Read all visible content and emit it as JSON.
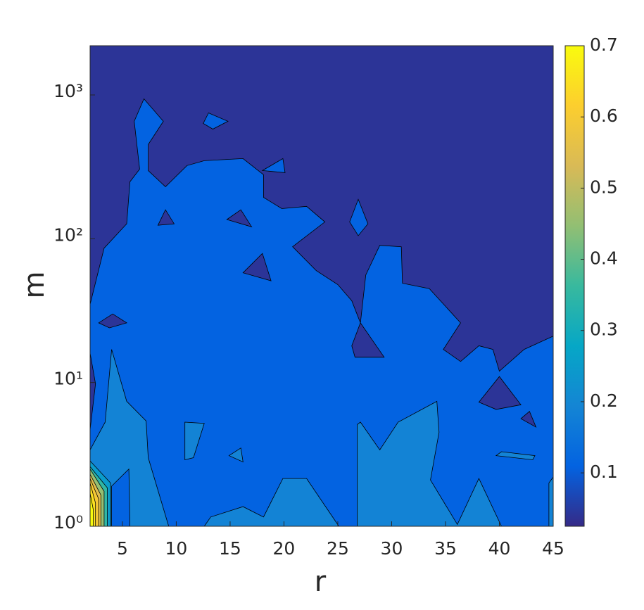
{
  "chart_data": {
    "type": "contour",
    "xlabel": "r",
    "ylabel": "m",
    "xlim": [
      2,
      45
    ],
    "xticks": [
      5,
      10,
      15,
      20,
      25,
      30,
      35,
      40,
      45
    ],
    "ylim": [
      1,
      2200
    ],
    "yscale": "log",
    "yticks": [
      {
        "value": 1,
        "label": "10⁰"
      },
      {
        "value": 10,
        "label": "10¹"
      },
      {
        "value": 100,
        "label": "10²"
      },
      {
        "value": 1000,
        "label": "10³"
      }
    ],
    "clim": [
      0.025,
      0.7
    ],
    "cticks": [
      0.1,
      0.2,
      0.3,
      0.4,
      0.5,
      0.6,
      0.7
    ],
    "colormap": [
      "#352a87",
      "#0363e1",
      "#1485d4",
      "#06a7c6",
      "#38b99e",
      "#92bf73",
      "#d9ba56",
      "#fcce2e",
      "#f9fb0e"
    ],
    "regions": [
      {
        "level": 0.04,
        "r": [
          2,
          45,
          45,
          2
        ],
        "m": [
          1,
          1,
          2200,
          2200
        ]
      },
      {
        "level": 0.11,
        "r": [
          2,
          3.3,
          5.4,
          5.7,
          6.6,
          6.1,
          7.0,
          8.8,
          7.4,
          7.4,
          9.0,
          11.0,
          12.6,
          16.2,
          18.1,
          18.1,
          19.8,
          22.1,
          23.8,
          20.8,
          23.0,
          25.0,
          26.3,
          27.1,
          27.6,
          28.9,
          30.9,
          31.0,
          33.5,
          36.4,
          34.8,
          36.4,
          38.1,
          39.4,
          40.0,
          42.3,
          45,
          45,
          2
        ],
        "m": [
          35,
          86,
          127,
          249,
          305,
          656,
          940,
          656,
          452,
          298,
          230,
          323,
          349,
          361,
          279,
          194,
          162,
          168,
          131,
          88,
          60,
          48,
          37,
          26,
          56,
          90,
          88,
          49,
          45,
          26,
          17,
          14,
          18,
          17,
          12,
          17,
          21,
          1,
          1
        ]
      },
      {
        "level": 0.04,
        "r": [
          26.3,
          27.1,
          29.3,
          26.6
        ],
        "m": [
          18,
          26,
          15,
          15
        ]
      },
      {
        "level": 0.04,
        "r": [
          2.8,
          4.1,
          5.4,
          3.8
        ],
        "m": [
          26,
          30,
          26,
          24
        ]
      },
      {
        "level": 0.04,
        "r": [
          38.1,
          40.0,
          42.0,
          39.7
        ],
        "m": [
          7.3,
          11,
          7.0,
          6.5
        ]
      },
      {
        "level": 0.04,
        "r": [
          16.2,
          18.0,
          18.8
        ],
        "m": [
          58,
          79,
          51
        ]
      },
      {
        "level": 0.04,
        "r": [
          14.7,
          16.0,
          17.0
        ],
        "m": [
          136,
          159,
          121
        ]
      },
      {
        "level": 0.04,
        "r": [
          8.3,
          9.0,
          9.8
        ],
        "m": [
          124,
          159,
          127
        ]
      },
      {
        "level": 0.04,
        "r": [
          42,
          42.8,
          43.4
        ],
        "m": [
          5.6,
          6.3,
          4.9
        ]
      },
      {
        "level": 0.04,
        "r": [
          2,
          2.5,
          2
        ],
        "m": [
          4.7,
          9.8,
          16
        ]
      },
      {
        "level": 0.11,
        "r": [
          12.5,
          13.0,
          14.8,
          13.4
        ],
        "m": [
          634,
          750,
          656,
          579
        ]
      },
      {
        "level": 0.11,
        "r": [
          26.1,
          26.9,
          27.8,
          26.9
        ],
        "m": [
          131,
          188,
          127,
          105
        ]
      },
      {
        "level": 0.11,
        "r": [
          18,
          19.9,
          20.1
        ],
        "m": [
          298,
          361,
          288
        ]
      },
      {
        "level": 0.19,
        "r": [
          2,
          3.4,
          4.0,
          5.4,
          7.2,
          7.4,
          9.3,
          2
        ],
        "m": [
          3.4,
          5.3,
          17,
          7.4,
          5.4,
          3.0,
          1,
          1
        ]
      },
      {
        "level": 0.11,
        "r": [
          4.0,
          5.6,
          5.7,
          4.0
        ],
        "m": [
          1.9,
          2.5,
          1,
          1
        ]
      },
      {
        "level": 0.19,
        "r": [
          12.6,
          13.2,
          16.2,
          18.1,
          19.9,
          22.1,
          25.1
        ],
        "m": [
          1,
          1.16,
          1.37,
          1.16,
          2.15,
          2.15,
          1
        ]
      },
      {
        "level": 0.19,
        "r": [
          26.8,
          26.8,
          27.1,
          28.9,
          30.6,
          34.2,
          34.4,
          33.6,
          36.1,
          38.1,
          40.2
        ],
        "m": [
          1,
          5.1,
          5.3,
          3.4,
          5.3,
          7.4,
          4.5,
          2.1,
          1.03,
          2.15,
          1
        ]
      },
      {
        "level": 0.19,
        "r": [
          10.8,
          12.6,
          11.6,
          10.8
        ],
        "m": [
          5.3,
          5.2,
          3.0,
          2.9
        ]
      },
      {
        "level": 0.19,
        "r": [
          14.9,
          16.0,
          16.2
        ],
        "m": [
          3.1,
          3.5,
          2.8
        ]
      },
      {
        "level": 0.19,
        "r": [
          39.7,
          40.2,
          43.3,
          43.1
        ],
        "m": [
          3.1,
          3.3,
          3.1,
          2.9
        ]
      },
      {
        "level": 0.19,
        "r": [
          44.6,
          45,
          45,
          44.6
        ],
        "m": [
          2.0,
          2.2,
          1,
          1
        ]
      },
      {
        "level": 0.25,
        "r": [
          2,
          3.9,
          3.9,
          2
        ],
        "m": [
          2.85,
          2.0,
          1,
          1
        ]
      },
      {
        "level": 0.35,
        "r": [
          2,
          3.6,
          3.6,
          2
        ],
        "m": [
          2.6,
          1.85,
          1,
          1
        ]
      },
      {
        "level": 0.45,
        "r": [
          2,
          3.3,
          3.3,
          2
        ],
        "m": [
          2.5,
          1.75,
          1,
          1
        ]
      },
      {
        "level": 0.55,
        "r": [
          2,
          3.0,
          3.0,
          2
        ],
        "m": [
          2.3,
          1.65,
          1,
          1
        ]
      },
      {
        "level": 0.6,
        "r": [
          2,
          2.8,
          2.8,
          2
        ],
        "m": [
          2.15,
          1.55,
          1,
          1
        ]
      },
      {
        "level": 0.65,
        "r": [
          2,
          2.5,
          2.5,
          2
        ],
        "m": [
          2.0,
          1.45,
          1,
          1
        ]
      },
      {
        "level": 0.7,
        "r": [
          2,
          2.3,
          2.3,
          2
        ],
        "m": [
          1.7,
          1.3,
          1,
          1
        ]
      }
    ]
  }
}
